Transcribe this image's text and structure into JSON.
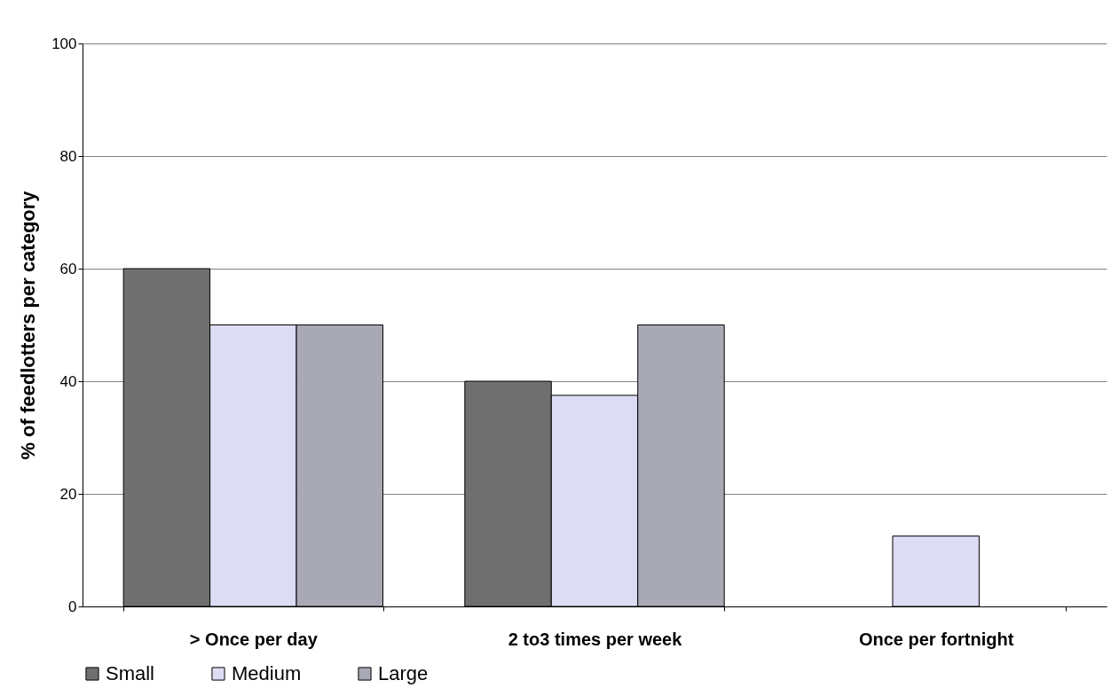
{
  "chart_data": {
    "type": "bar",
    "ylabel": "% of feedlotters per category",
    "categories": [
      "> Once per day",
      "2 to3 times per week",
      "Once per fortnight"
    ],
    "series": [
      {
        "name": "Small",
        "color": "#6f6f6f",
        "values": [
          60,
          40,
          null
        ]
      },
      {
        "name": "Medium",
        "color": "#dcdcf4",
        "values": [
          50,
          37.5,
          12.5
        ]
      },
      {
        "name": "Large",
        "color": "#a9a9b6",
        "values": [
          50,
          50,
          null
        ]
      }
    ],
    "ylim": [
      0,
      100
    ],
    "yticks": [
      0,
      20,
      40,
      60,
      80,
      100
    ],
    "grid": "y",
    "legend": "bottom"
  }
}
